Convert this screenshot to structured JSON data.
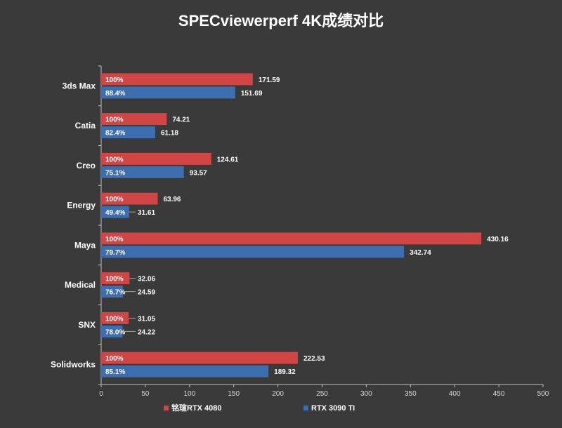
{
  "chart_data": {
    "type": "bar",
    "orientation": "horizontal",
    "title": "SPECviewerperf 4K成绩对比",
    "categories": [
      "3ds Max",
      "Catia",
      "Creo",
      "Energy",
      "Maya",
      "Medical",
      "SNX",
      "Solidworks"
    ],
    "series": [
      {
        "name": "铭瑄RTX 4080",
        "color": "#d14545",
        "values": [
          171.59,
          74.21,
          124.61,
          63.96,
          430.16,
          32.06,
          31.05,
          222.53
        ],
        "percent_labels": [
          "100%",
          "100%",
          "100%",
          "100%",
          "100%",
          "100%",
          "100%",
          "100%"
        ]
      },
      {
        "name": "RTX 3090 Ti",
        "color": "#3d6fb0",
        "values": [
          151.69,
          61.18,
          93.57,
          31.61,
          342.74,
          24.59,
          24.22,
          189.32
        ],
        "percent_labels": [
          "88.4%",
          "82.4%",
          "75.1%",
          "49.4%",
          "79.7%",
          "76.7%",
          "78.0%",
          "85.1%"
        ]
      }
    ],
    "xlim": [
      0,
      500
    ],
    "x_ticks": [
      0,
      50,
      100,
      150,
      200,
      250,
      300,
      350,
      400,
      450,
      500
    ],
    "grid": false,
    "legend_position": "bottom"
  }
}
